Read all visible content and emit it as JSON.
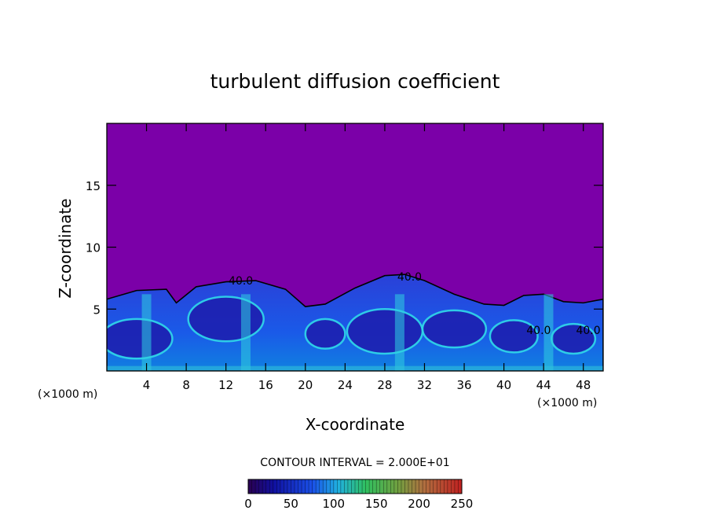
{
  "chart_data": {
    "type": "heatmap",
    "title": "turbulent diffusion coefficient",
    "xlabel": "X-coordinate",
    "ylabel": "Z-coordinate",
    "x_unit": "(×1000 m)",
    "z_unit": "(×1000 m)",
    "xlim": [
      0,
      50
    ],
    "ylim": [
      0,
      20
    ],
    "x_ticks": [
      4,
      8,
      12,
      16,
      20,
      24,
      28,
      32,
      36,
      40,
      44,
      48
    ],
    "y_ticks": [
      5,
      10,
      15
    ],
    "contour_interval": "CONTOUR INTERVAL = 2.000E+01",
    "contour_labels": [
      "40.0",
      "40.0",
      "40.0",
      "40.0"
    ],
    "colorbar": {
      "min": 0,
      "max": 250,
      "ticks": [
        0,
        50,
        100,
        150,
        200,
        250
      ]
    },
    "background_value_color": "#7b00a8",
    "boundary_layer_top": {
      "x": [
        0,
        3,
        6,
        7,
        9,
        12,
        15,
        18,
        20,
        22,
        25,
        28,
        30,
        32,
        35,
        38,
        40,
        42,
        44,
        46,
        48,
        50
      ],
      "z": [
        5.8,
        6.5,
        6.6,
        5.5,
        6.8,
        7.2,
        7.3,
        6.6,
        5.2,
        5.4,
        6.7,
        7.7,
        7.8,
        7.3,
        6.2,
        5.4,
        5.3,
        6.1,
        6.2,
        5.6,
        5.5,
        5.8
      ]
    }
  }
}
